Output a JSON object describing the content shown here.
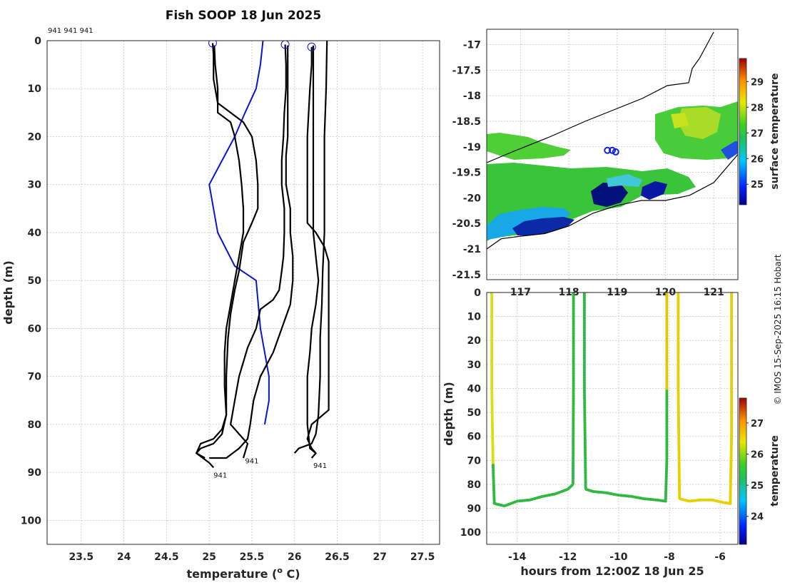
{
  "chart_data": [
    {
      "type": "line",
      "title": "Fish SOOP 18 Jun 2025",
      "xlabel": "temperature (",
      "xlabel_sup": "o",
      "xlabel_tail": " C)",
      "ylabel": "depth (m)",
      "xlim": [
        23.1,
        27.7
      ],
      "ylim": [
        105,
        0
      ],
      "xticks": [
        "23.5",
        "24",
        "24.5",
        "25",
        "25.5",
        "26",
        "26.5",
        "27",
        "27.5"
      ],
      "yticks": [
        "0",
        "10",
        "20",
        "30",
        "40",
        "50",
        "60",
        "70",
        "80",
        "90",
        "100"
      ],
      "header_ids": "941 941 941",
      "end_labels": [
        {
          "text": "941",
          "t": 25.42,
          "d": 87.5
        },
        {
          "text": "941",
          "t": 25.05,
          "d": 90.5
        },
        {
          "text": "941",
          "t": 26.22,
          "d": 88.5
        }
      ],
      "start_markers": [
        {
          "t": 25.04,
          "d": 0.5
        },
        {
          "t": 25.89,
          "d": 0.8
        },
        {
          "t": 26.2,
          "d": 1.3
        }
      ],
      "series": [
        {
          "name": "climatology",
          "color": "#0a14d8",
          "points": [
            [
              25.63,
              0
            ],
            [
              25.6,
              5
            ],
            [
              25.55,
              10
            ],
            [
              25.42,
              15
            ],
            [
              25.3,
              20
            ],
            [
              25.15,
              25
            ],
            [
              25.0,
              30
            ],
            [
              25.1,
              40
            ],
            [
              25.3,
              47
            ],
            [
              25.55,
              50
            ],
            [
              25.6,
              60
            ],
            [
              25.65,
              65
            ],
            [
              25.7,
              70
            ],
            [
              25.7,
              75
            ],
            [
              25.65,
              80
            ]
          ]
        },
        {
          "name": "profile-1a",
          "color": "#000000",
          "points": [
            [
              25.04,
              0.5
            ],
            [
              25.05,
              3
            ],
            [
              25.05,
              8
            ],
            [
              25.1,
              13
            ],
            [
              25.25,
              15
            ],
            [
              25.4,
              17
            ],
            [
              25.5,
              20
            ],
            [
              25.55,
              25
            ],
            [
              25.57,
              30
            ],
            [
              25.57,
              35
            ],
            [
              25.5,
              38
            ],
            [
              25.4,
              42
            ],
            [
              25.35,
              48
            ],
            [
              25.3,
              52
            ],
            [
              25.25,
              57
            ],
            [
              25.22,
              62
            ],
            [
              25.2,
              70
            ],
            [
              25.2,
              78
            ],
            [
              25.15,
              81
            ],
            [
              25.05,
              83
            ],
            [
              24.9,
              84
            ],
            [
              24.85,
              86
            ],
            [
              24.95,
              87
            ]
          ]
        },
        {
          "name": "profile-1b",
          "color": "#000000",
          "points": [
            [
              25.06,
              1
            ],
            [
              25.07,
              5
            ],
            [
              25.1,
              10
            ],
            [
              25.1,
              15
            ],
            [
              25.25,
              17
            ],
            [
              25.3,
              20
            ],
            [
              25.35,
              25
            ],
            [
              25.38,
              30
            ],
            [
              25.4,
              35
            ],
            [
              25.4,
              40
            ],
            [
              25.35,
              45
            ],
            [
              25.3,
              50
            ],
            [
              25.25,
              55
            ],
            [
              25.2,
              60
            ],
            [
              25.18,
              65
            ],
            [
              25.18,
              72
            ],
            [
              25.2,
              78
            ],
            [
              25.15,
              82
            ],
            [
              25.05,
              84
            ],
            [
              24.9,
              85
            ],
            [
              24.85,
              86
            ],
            [
              25.0,
              88
            ],
            [
              25.05,
              89
            ]
          ]
        },
        {
          "name": "profile-2a",
          "color": "#000000",
          "points": [
            [
              25.89,
              0.8
            ],
            [
              25.9,
              5
            ],
            [
              25.9,
              10
            ],
            [
              25.88,
              15
            ],
            [
              25.87,
              20
            ],
            [
              25.85,
              25
            ],
            [
              25.85,
              30
            ],
            [
              25.88,
              35
            ],
            [
              25.88,
              40
            ],
            [
              25.87,
              45
            ],
            [
              25.85,
              48
            ],
            [
              25.82,
              52
            ],
            [
              25.75,
              54
            ],
            [
              25.6,
              56
            ],
            [
              25.55,
              60
            ],
            [
              25.45,
              64
            ],
            [
              25.35,
              70
            ],
            [
              25.3,
              75
            ],
            [
              25.25,
              80
            ],
            [
              25.35,
              82
            ],
            [
              25.45,
              84
            ],
            [
              25.4,
              87
            ]
          ]
        },
        {
          "name": "profile-2b",
          "color": "#000000",
          "points": [
            [
              25.92,
              1
            ],
            [
              25.92,
              5
            ],
            [
              25.92,
              10
            ],
            [
              25.92,
              15
            ],
            [
              25.92,
              20
            ],
            [
              25.9,
              24
            ],
            [
              25.9,
              30
            ],
            [
              25.95,
              35
            ],
            [
              25.95,
              40
            ],
            [
              25.98,
              45
            ],
            [
              25.98,
              50
            ],
            [
              25.95,
              55
            ],
            [
              25.85,
              60
            ],
            [
              25.75,
              65
            ],
            [
              25.6,
              70
            ],
            [
              25.52,
              75
            ],
            [
              25.48,
              80
            ],
            [
              25.45,
              83
            ],
            [
              25.35,
              85
            ],
            [
              25.2,
              87
            ],
            [
              25.0,
              87
            ]
          ]
        },
        {
          "name": "profile-3a",
          "color": "#000000",
          "points": [
            [
              26.2,
              1.3
            ],
            [
              26.2,
              5
            ],
            [
              26.18,
              10
            ],
            [
              26.15,
              20
            ],
            [
              26.15,
              30
            ],
            [
              26.15,
              38
            ],
            [
              26.25,
              40
            ],
            [
              26.35,
              43
            ],
            [
              26.4,
              46
            ],
            [
              26.4,
              55
            ],
            [
              26.4,
              65
            ],
            [
              26.4,
              77
            ],
            [
              26.2,
              80
            ],
            [
              26.15,
              83
            ],
            [
              26.2,
              85
            ],
            [
              26.25,
              86
            ]
          ]
        },
        {
          "name": "profile-3b",
          "color": "#000000",
          "points": [
            [
              26.22,
              1
            ],
            [
              26.22,
              10
            ],
            [
              26.22,
              20
            ],
            [
              26.22,
              30
            ],
            [
              26.22,
              40
            ],
            [
              26.25,
              45
            ],
            [
              26.28,
              50
            ],
            [
              26.25,
              55
            ],
            [
              26.2,
              60
            ],
            [
              26.18,
              65
            ],
            [
              26.15,
              70
            ],
            [
              26.15,
              75
            ],
            [
              26.15,
              80
            ],
            [
              26.18,
              85
            ],
            [
              26.25,
              86
            ],
            [
              26.2,
              87
            ]
          ]
        },
        {
          "name": "profile-3c",
          "color": "#000000",
          "points": [
            [
              26.38,
              0
            ],
            [
              26.37,
              10
            ],
            [
              26.35,
              20
            ],
            [
              26.35,
              30
            ],
            [
              26.35,
              40
            ],
            [
              26.33,
              48
            ],
            [
              26.32,
              55
            ],
            [
              26.3,
              62
            ],
            [
              26.3,
              70
            ],
            [
              26.28,
              78
            ],
            [
              26.25,
              82
            ],
            [
              26.2,
              84
            ],
            [
              26.05,
              85
            ],
            [
              26.0,
              86
            ]
          ]
        }
      ]
    },
    {
      "type": "heatmap",
      "chart_name": "surface temperature map",
      "xlim": [
        116.3,
        121.5
      ],
      "ylim": [
        -21.6,
        -16.7
      ],
      "xticks": [
        "117",
        "118",
        "119",
        "120",
        "121"
      ],
      "yticks": [
        "-17",
        "-17.5",
        "-18",
        "-18.5",
        "-19",
        "-19.5",
        "-20",
        "-20.5",
        "-21",
        "-21.5"
      ],
      "colorbar": {
        "label": "surface temperature",
        "min": 24.2,
        "max": 29.9,
        "ticks": [
          "25",
          "26",
          "27",
          "28",
          "29"
        ]
      },
      "coastline": [
        [
          116.3,
          -21.0
        ],
        [
          116.6,
          -20.8
        ],
        [
          117.0,
          -20.75
        ],
        [
          117.5,
          -20.7
        ],
        [
          118.0,
          -20.55
        ],
        [
          118.5,
          -20.3
        ],
        [
          119.0,
          -20.15
        ],
        [
          119.5,
          -20.05
        ],
        [
          120.0,
          -20.05
        ],
        [
          120.5,
          -19.95
        ],
        [
          121.0,
          -19.7
        ],
        [
          121.5,
          -19.15
        ]
      ],
      "track_positions": [
        [
          118.8,
          -19.07
        ],
        [
          118.9,
          -19.07
        ],
        [
          118.97,
          -19.1
        ]
      ]
    },
    {
      "type": "scatter",
      "chart_name": "temperature section",
      "xlabel": "hours from 12:00Z 18 Jun 25",
      "ylabel": "depth (m)",
      "xlim": [
        -15.2,
        -5.3
      ],
      "ylim": [
        105,
        0
      ],
      "xticks": [
        "-14",
        "-12",
        "-10",
        "-8",
        "-6"
      ],
      "yticks": [
        "0",
        "10",
        "20",
        "30",
        "40",
        "50",
        "60",
        "70",
        "80",
        "90",
        "100"
      ],
      "colorbar": {
        "label": "temperature",
        "min": 23.1,
        "max": 27.8,
        "ticks": [
          "24",
          "25",
          "26",
          "27"
        ]
      }
    }
  ],
  "watermark": "© IMOS 15-Sep-2025 16:15 Hobart"
}
